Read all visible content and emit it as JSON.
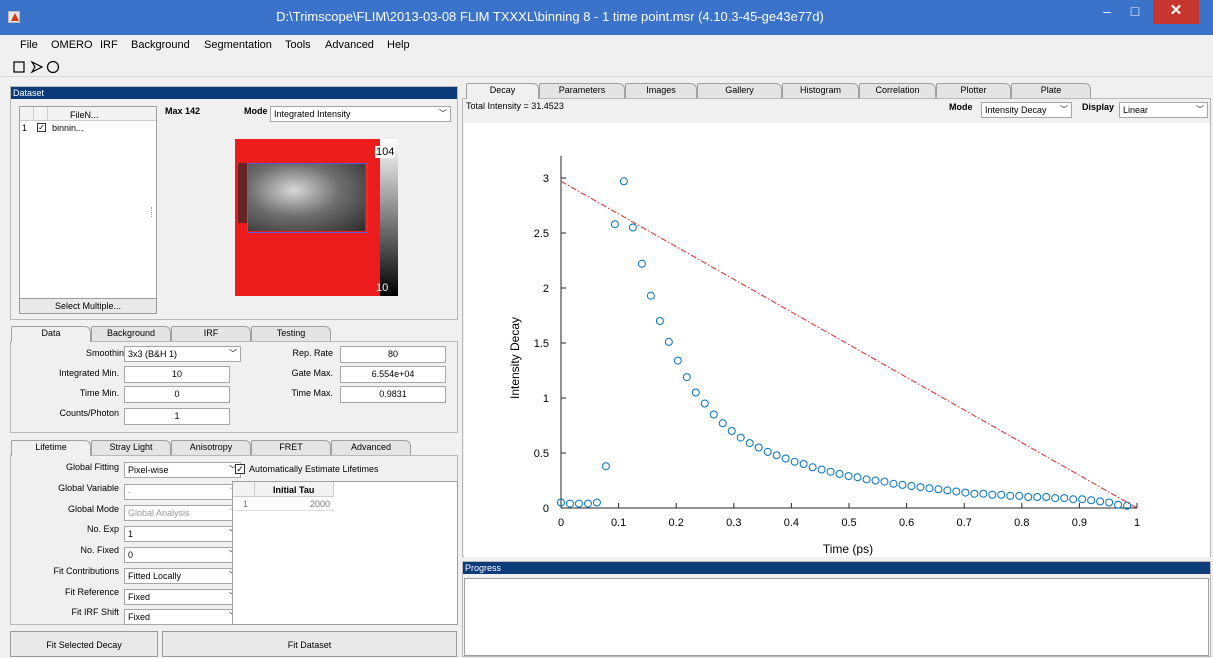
{
  "window": {
    "title": "D:\\Trimscope\\FLIM\\2013-03-08 FLIM TXXXL\\binning 8 - 1 time point.msr (4.10.3-45-ge43e77d)",
    "minimize": "–",
    "maximize": "□",
    "close": "✕"
  },
  "menu": [
    "File",
    "OMERO",
    "IRF",
    "Background",
    "Segmentation",
    "Tools",
    "Advanced",
    "Help"
  ],
  "dataset": {
    "title": "Dataset",
    "file_header": "FileN...",
    "rows": [
      {
        "index": "1",
        "checked": true,
        "name": "binnin..."
      }
    ],
    "select_multiple": "Select Multiple...",
    "max_label": "Max 142",
    "mode_label": "Mode",
    "mode_value": "Integrated Intensity",
    "colorbar_max": "104",
    "colorbar_min": "10"
  },
  "data_tabs": [
    "Data",
    "Background",
    "IRF",
    "Testing"
  ],
  "data_panel": {
    "smoothing_label": "Smoothing",
    "smoothing_value": "3x3 (B&H 1)",
    "integrated_min_label": "Integrated Min.",
    "integrated_min_value": "10",
    "time_min_label": "Time Min.",
    "time_min_value": "0",
    "counts_photon_label": "Counts/Photon",
    "counts_photon_value": "1",
    "rep_rate_label": "Rep. Rate",
    "rep_rate_value": "80",
    "gate_max_label": "Gate Max.",
    "gate_max_value": "6.554e+04",
    "time_max_label": "Time Max.",
    "time_max_value": "0.9831"
  },
  "lifetime_tabs": [
    "Lifetime",
    "Stray Light",
    "Anisotropy",
    "FRET",
    "Advanced"
  ],
  "lifetime_panel": {
    "global_fitting_label": "Global Fitting",
    "global_fitting_value": "Pixel-wise",
    "global_variable_label": "Global Variable",
    "global_variable_value": "-",
    "global_mode_label": "Global Mode",
    "global_mode_value": "Global Analysis",
    "no_exp_label": "No. Exp",
    "no_exp_value": "1",
    "no_fixed_label": "No. Fixed",
    "no_fixed_value": "0",
    "fit_contributions_label": "Fit Contributions",
    "fit_contributions_value": "Fitted Locally",
    "fit_reference_label": "Fit Reference",
    "fit_reference_value": "Fixed",
    "fit_irf_shift_label": "Fit IRF Shift",
    "fit_irf_shift_value": "Fixed",
    "auto_estimate_label": "Automatically Estimate Lifetimes",
    "tau_header": "Initial Tau",
    "tau_row_index": "1",
    "tau_row_value": "2000"
  },
  "buttons": {
    "fit_selected": "Fit Selected Decay",
    "fit_dataset": "Fit Dataset"
  },
  "right_tabs": [
    "Decay",
    "Parameters",
    "Images",
    "Gallery",
    "Histogram",
    "Correlation",
    "Plotter",
    "Plate"
  ],
  "decay_header": {
    "total_intensity": "Total Intensity = 31.4523",
    "mode_label": "Mode",
    "mode_value": "Intensity Decay",
    "display_label": "Display",
    "display_value": "Linear"
  },
  "progress": {
    "title": "Progress"
  },
  "chart_data": {
    "type": "scatter",
    "title": "",
    "xlabel": "Time (ps)",
    "ylabel": "Intensity Decay",
    "xlim": [
      0,
      1
    ],
    "ylim": [
      0,
      3.2
    ],
    "xticks": [
      "0",
      "0.1",
      "0.2",
      "0.3",
      "0.4",
      "0.5",
      "0.6",
      "0.7",
      "0.8",
      "0.9",
      "1"
    ],
    "yticks": [
      "0",
      "0.5",
      "1",
      "1.5",
      "2",
      "2.5",
      "3"
    ],
    "grid": false,
    "series": [
      {
        "kind": "points",
        "color": "#0072bd",
        "x": [
          0,
          0.0156,
          0.0312,
          0.0468,
          0.0624,
          0.078,
          0.0936,
          0.1092,
          0.1248,
          0.1404,
          0.156,
          0.1716,
          0.1872,
          0.2028,
          0.2184,
          0.234,
          0.2496,
          0.2652,
          0.2808,
          0.2964,
          0.312,
          0.3276,
          0.3432,
          0.3588,
          0.3744,
          0.39,
          0.4056,
          0.4212,
          0.4368,
          0.4524,
          0.468,
          0.4836,
          0.4992,
          0.5148,
          0.5304,
          0.546,
          0.5616,
          0.5772,
          0.5928,
          0.6084,
          0.624,
          0.6396,
          0.6552,
          0.6708,
          0.6864,
          0.702,
          0.7176,
          0.7332,
          0.7488,
          0.7644,
          0.78,
          0.7956,
          0.8112,
          0.8268,
          0.8424,
          0.858,
          0.8736,
          0.8892,
          0.9048,
          0.9204,
          0.936,
          0.9516,
          0.9672,
          0.9828
        ],
        "y": [
          0.05,
          0.04,
          0.04,
          0.04,
          0.05,
          0.38,
          2.58,
          2.97,
          2.55,
          2.22,
          1.93,
          1.7,
          1.51,
          1.34,
          1.19,
          1.05,
          0.95,
          0.85,
          0.77,
          0.7,
          0.64,
          0.59,
          0.55,
          0.51,
          0.48,
          0.45,
          0.42,
          0.4,
          0.37,
          0.35,
          0.33,
          0.31,
          0.29,
          0.28,
          0.26,
          0.25,
          0.24,
          0.22,
          0.21,
          0.2,
          0.19,
          0.18,
          0.17,
          0.16,
          0.15,
          0.14,
          0.13,
          0.13,
          0.12,
          0.12,
          0.11,
          0.11,
          0.1,
          0.1,
          0.1,
          0.09,
          0.09,
          0.08,
          0.08,
          0.07,
          0.06,
          0.05,
          0.03,
          0.02
        ]
      },
      {
        "kind": "fit-line",
        "color": "#d62728",
        "x": [
          0,
          1
        ],
        "y": [
          2.97,
          0
        ]
      }
    ]
  }
}
